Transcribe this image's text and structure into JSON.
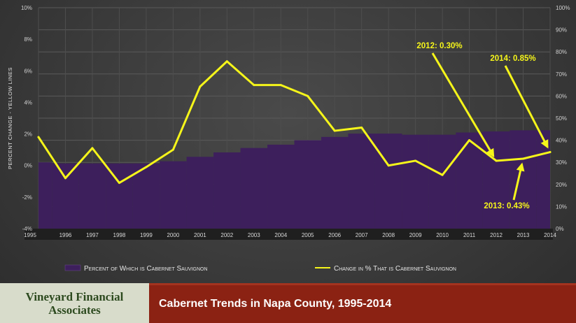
{
  "chart_data": {
    "type": "bar+line",
    "categories": [
      "1995",
      "1996",
      "1997",
      "1998",
      "1999",
      "2000",
      "2001",
      "2002",
      "2003",
      "2004",
      "2005",
      "2006",
      "2007",
      "2008",
      "2009",
      "2010",
      "2011",
      "2012",
      "2013",
      "2014"
    ],
    "series": [
      {
        "name": "Percent of Which is Cabernet Sauvignon",
        "type": "area",
        "axis": "right",
        "color": "#3d1f5c",
        "values": [
          30,
          29.5,
          29.5,
          29.5,
          29.5,
          30.5,
          32.5,
          34.5,
          36.5,
          38,
          40,
          41.5,
          43,
          43,
          42.5,
          42.5,
          43.5,
          44,
          44.5,
          44.5
        ]
      },
      {
        "name": "Change in % That is Cabernet Sauvignon",
        "type": "line",
        "axis": "left",
        "color": "#f5f51a",
        "values": [
          1.8,
          -0.8,
          1.1,
          -1.1,
          -0.1,
          1.0,
          5.0,
          6.6,
          5.1,
          5.1,
          4.4,
          2.2,
          2.4,
          0.0,
          0.3,
          -0.6,
          1.6,
          0.3,
          0.43,
          0.85
        ]
      }
    ],
    "y_left": {
      "label": "Percent Change - Yellow Lines",
      "ylim": [
        -4,
        10
      ],
      "ticks": [
        "-4%",
        "-2%",
        "0%",
        "2%",
        "4%",
        "6%",
        "8%",
        "10%"
      ],
      "tick_values": [
        -4,
        -2,
        0,
        2,
        4,
        6,
        8,
        10
      ]
    },
    "y_right": {
      "ylim": [
        0,
        100
      ],
      "ticks": [
        "0%",
        "10%",
        "20%",
        "30%",
        "40%",
        "50%",
        "60%",
        "70%",
        "80%",
        "90%",
        "100%"
      ],
      "tick_values": [
        0,
        10,
        20,
        30,
        40,
        50,
        60,
        70,
        80,
        90,
        100
      ]
    },
    "grid": true,
    "legend_position": "bottom",
    "annotations": [
      {
        "text": "2012:  0.30%",
        "category": "2012",
        "value": 0.3
      },
      {
        "text": "2014:  0.85%",
        "category": "2014",
        "value": 0.85
      },
      {
        "text": "2013:  0.43%",
        "category": "2013",
        "value": 0.43
      }
    ]
  },
  "legend": {
    "area_label": "Percent of Which is Cabernet Sauvignon",
    "line_label": "Change in % That is Cabernet Sauvignon"
  },
  "footer": {
    "brand_line1": "Vineyard Financial",
    "brand_line2": "Associates",
    "title": "Cabernet Trends in Napa County, 1995-2014"
  }
}
